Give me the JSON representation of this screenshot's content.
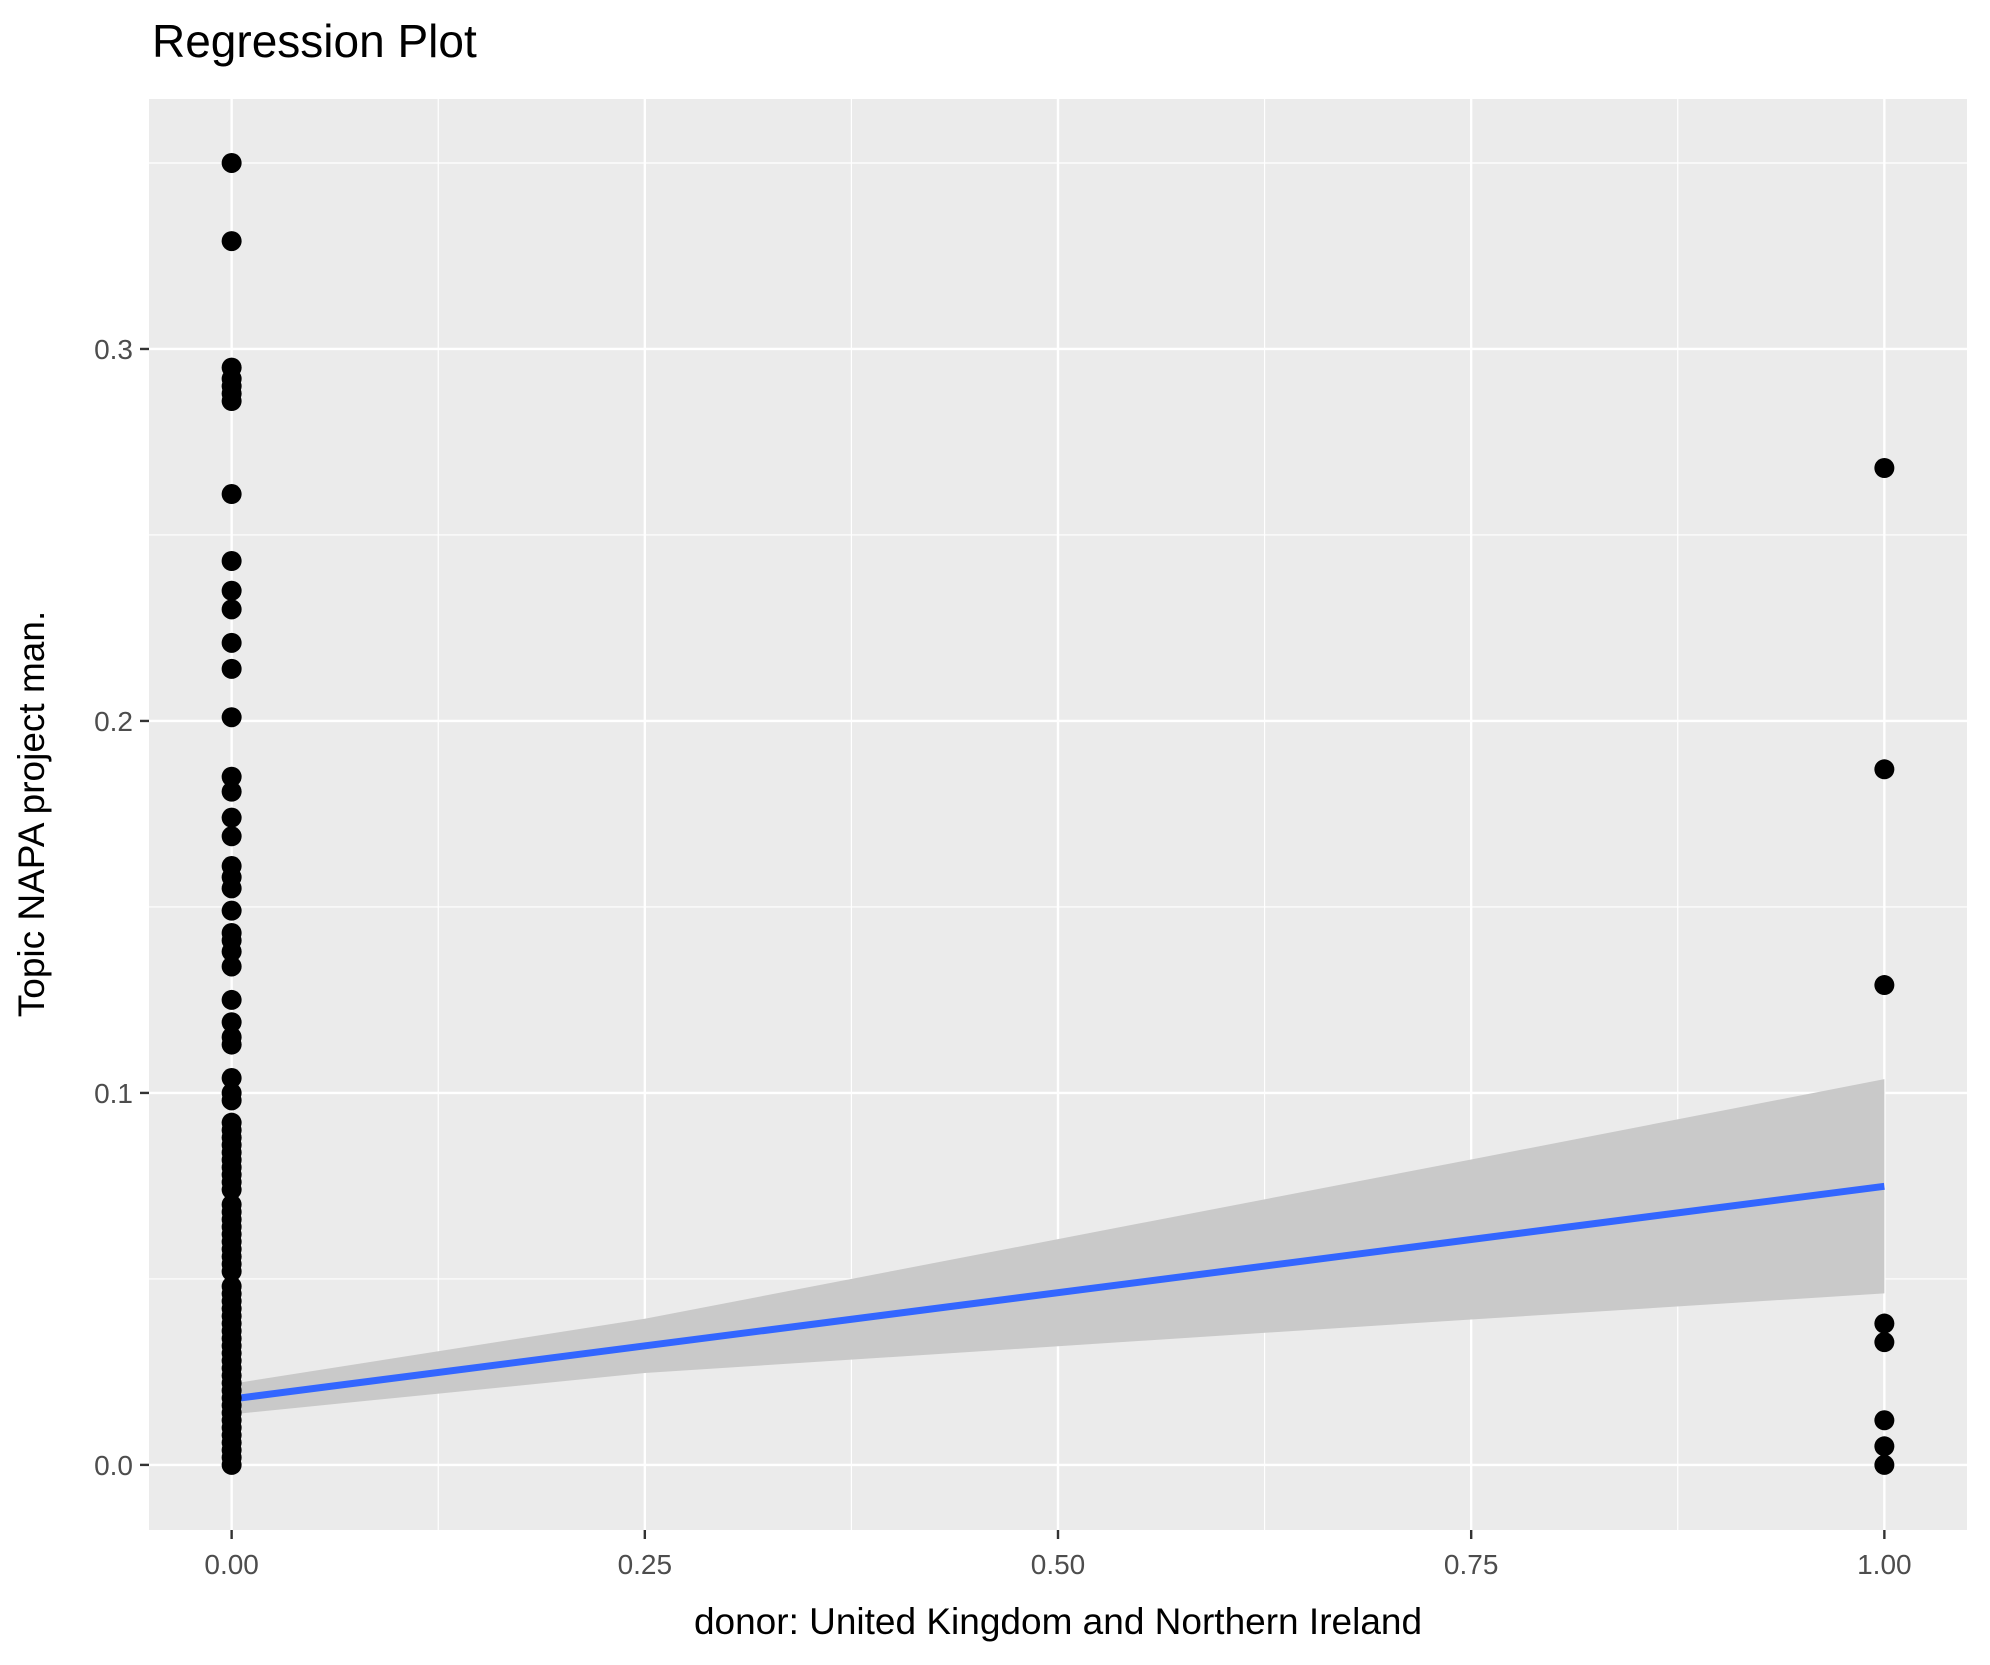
{
  "chart_data": {
    "type": "scatter",
    "title": "Regression Plot",
    "xlabel": "donor: United Kingdom and Northern Ireland",
    "ylabel": "Topic NAPA project man.",
    "x_axis": {
      "tick_values": [
        0,
        0.25,
        0.5,
        0.75,
        1.0
      ],
      "tick_labels": [
        "0.00",
        "0.25",
        "0.50",
        "0.75",
        "1.00"
      ],
      "minor_tick_values": [
        0.125,
        0.375,
        0.625,
        0.875
      ],
      "limits": [
        -0.05,
        1.05
      ]
    },
    "y_axis": {
      "tick_values": [
        0,
        0.1,
        0.2,
        0.3
      ],
      "tick_labels": [
        "0.0",
        "0.1",
        "0.2",
        "0.3"
      ],
      "minor_tick_values": [
        0.05,
        0.15,
        0.25,
        0.35
      ],
      "limits": [
        -0.0175,
        0.3672
      ]
    },
    "grid": "on",
    "legend": "none",
    "series": [
      {
        "name": "points at donor = 0",
        "x": 0,
        "y": [
          0.35,
          0.329,
          0.295,
          0.292,
          0.29,
          0.288,
          0.286,
          0.261,
          0.243,
          0.235,
          0.23,
          0.221,
          0.214,
          0.201,
          0.185,
          0.181,
          0.174,
          0.169,
          0.161,
          0.158,
          0.155,
          0.149,
          0.143,
          0.141,
          0.138,
          0.134,
          0.125,
          0.119,
          0.115,
          0.113,
          0.104,
          0.1,
          0.098,
          0.092,
          0.09,
          0.088,
          0.086,
          0.084,
          0.082,
          0.08,
          0.078,
          0.076,
          0.074,
          0.07,
          0.068,
          0.066,
          0.064,
          0.062,
          0.06,
          0.058,
          0.056,
          0.054,
          0.052,
          0.048,
          0.046,
          0.044,
          0.042,
          0.04,
          0.038,
          0.036,
          0.034,
          0.032,
          0.03,
          0.028,
          0.026,
          0.024,
          0.022,
          0.02,
          0.018,
          0.016,
          0.014,
          0.012,
          0.01,
          0.008,
          0.006,
          0.004,
          0.002,
          0.0
        ]
      },
      {
        "name": "points at donor = 1",
        "x": 1,
        "y": [
          0.268,
          0.187,
          0.129,
          0.038,
          0.033,
          0.012,
          0.005,
          0.0
        ]
      }
    ],
    "regression_line": {
      "x": [
        0,
        1
      ],
      "y": [
        0.0177,
        0.0749
      ],
      "color": "#3366FF"
    },
    "confidence_band": {
      "x": [
        0,
        0.25,
        0.5,
        0.75,
        1.0
      ],
      "upper": [
        0.0218,
        0.0393,
        0.0607,
        0.0821,
        0.1037
      ],
      "lower": [
        0.0136,
        0.0247,
        0.0319,
        0.0391,
        0.0461
      ],
      "color": "#C9C9C9"
    },
    "colors": {
      "panel_background": "#EBEBEB",
      "grid": "#FFFFFF",
      "points": "#000000",
      "tick_labels": "#4D4D4D",
      "tick_marks": "#333333",
      "titles": "#000000"
    }
  }
}
